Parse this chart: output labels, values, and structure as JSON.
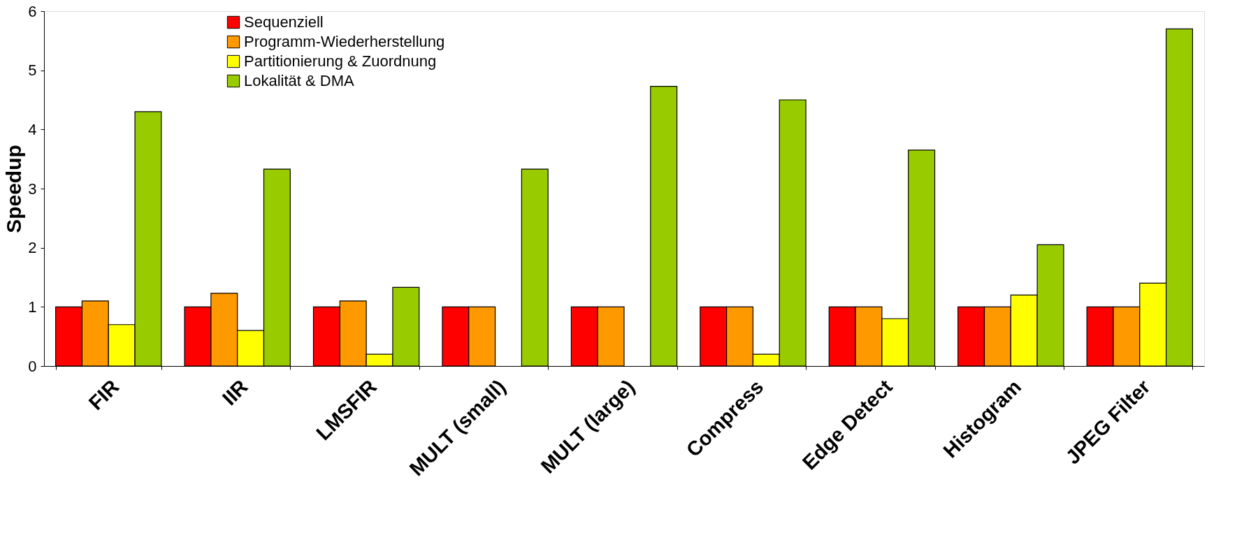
{
  "chart_data": {
    "type": "bar",
    "ylabel": "Speedup",
    "categories": [
      "FIR",
      "IIR",
      "LMSFIR",
      "MULT (small)",
      "MULT (large)",
      "Compress",
      "Edge Detect",
      "Histogram",
      "JPEG Filter"
    ],
    "series": [
      {
        "name": "Sequenziell",
        "color": "#ff0000",
        "values": [
          1,
          1,
          1,
          1,
          1,
          1,
          1,
          1,
          1
        ]
      },
      {
        "name": "Programm-Wiederherstellung",
        "color": "#ff9900",
        "values": [
          1.1,
          1.23,
          1.1,
          1,
          1,
          1,
          1,
          1,
          1
        ]
      },
      {
        "name": "Partitionierung & Zuordnung",
        "color": "#ffff00",
        "values": [
          0.7,
          0.6,
          0.2,
          null,
          null,
          0.2,
          0.8,
          1.2,
          1.4
        ]
      },
      {
        "name": "Lokalität & DMA",
        "color": "#99cc00",
        "values": [
          4.3,
          3.33,
          1.33,
          3.33,
          4.73,
          4.5,
          3.65,
          2.05,
          5.7
        ]
      }
    ],
    "ylim": [
      0,
      6
    ],
    "yticks": [
      0,
      1,
      2,
      3,
      4,
      5,
      6
    ],
    "grid": false,
    "legend": "top left"
  }
}
